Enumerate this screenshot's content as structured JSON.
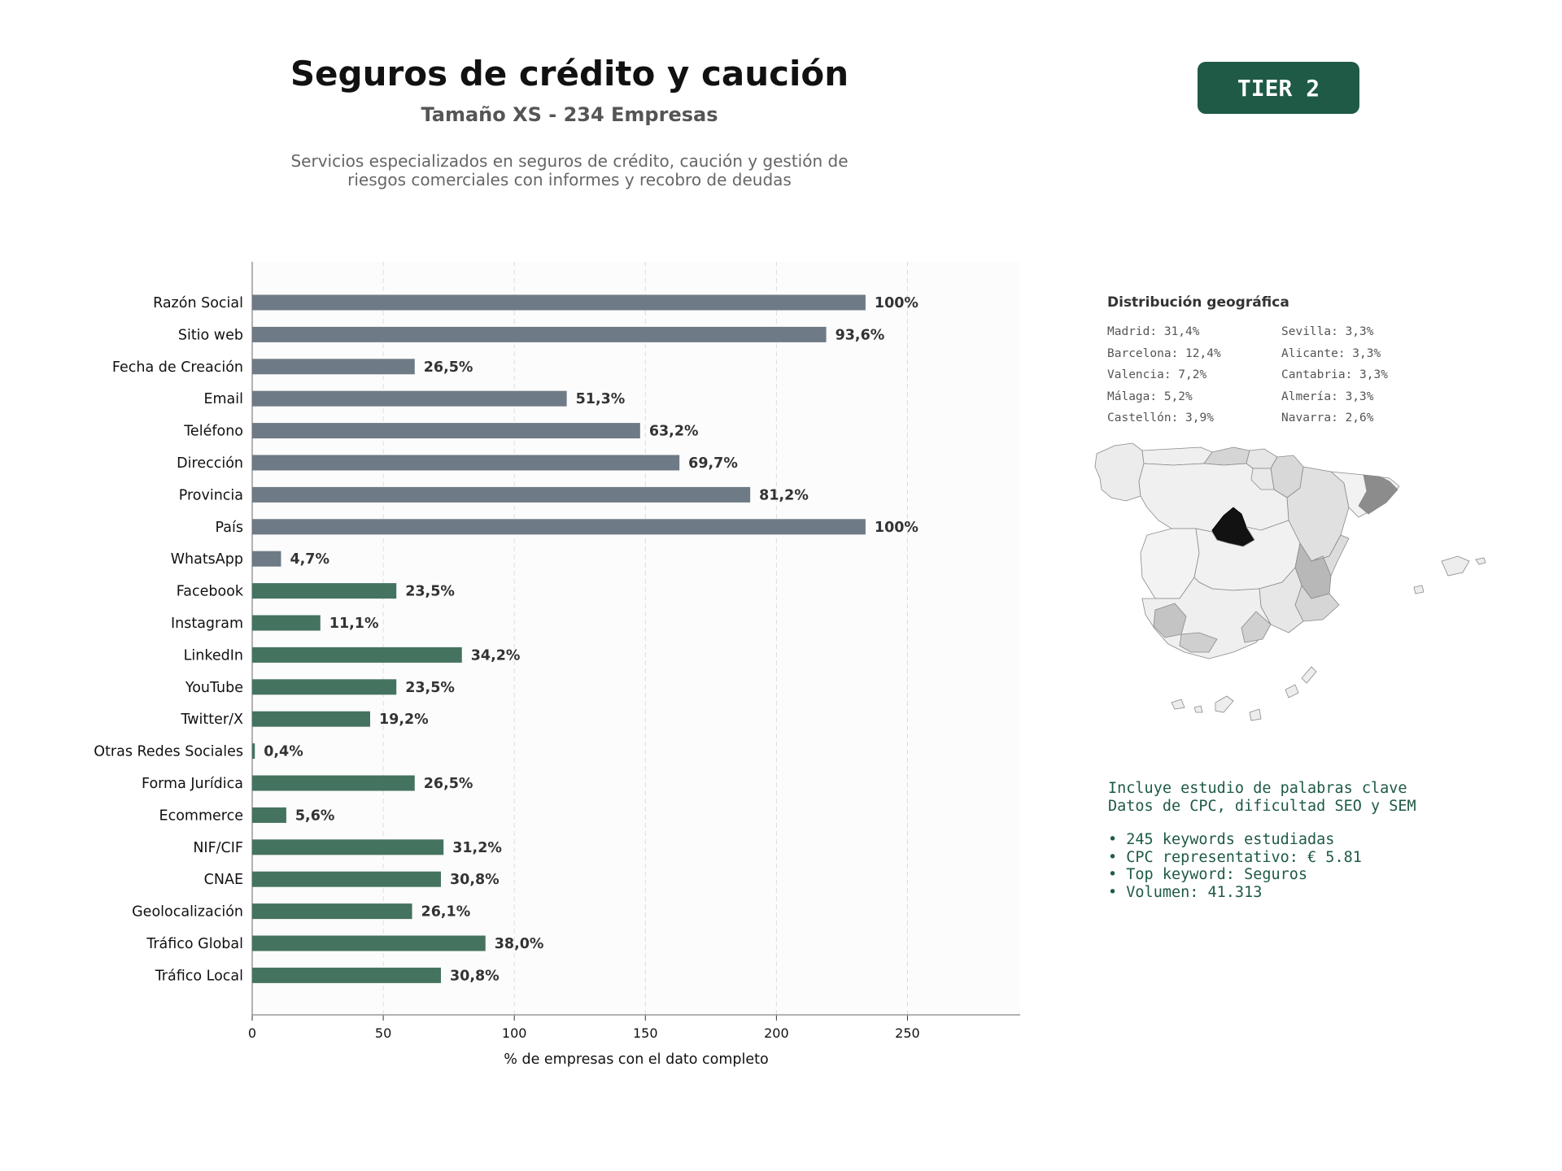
{
  "header": {
    "title": "Seguros de crédito y caución",
    "subtitle": "Tamaño XS - 234 Empresas",
    "description_line1": "Servicios especializados en seguros de crédito, caución y gestión de",
    "description_line2": "riesgos comerciales con informes y recobro de deudas",
    "badge": "TIER 2"
  },
  "chart_data": {
    "type": "bar",
    "orientation": "horizontal",
    "xlabel": "% de empresas con el dato completo",
    "xlim": [
      0,
      293
    ],
    "xticks": [
      0,
      50,
      100,
      150,
      200,
      250
    ],
    "grid": "x-dashed",
    "categories": [
      "Razón Social",
      "Sitio web",
      "Fecha de Creación",
      "Email",
      "Teléfono",
      "Dirección",
      "Provincia",
      "País",
      "WhatsApp",
      "Facebook",
      "Instagram",
      "LinkedIn",
      "YouTube",
      "Twitter/X",
      "Otras Redes Sociales",
      "Forma Jurídica",
      "Ecommerce",
      "NIF/CIF",
      "CNAE",
      "Geolocalización",
      "Tráfico Global",
      "Tráfico Local"
    ],
    "values": [
      234,
      219,
      62,
      120,
      148,
      163,
      190,
      234,
      11,
      55,
      26,
      80,
      55,
      45,
      1,
      62,
      13,
      73,
      72,
      61,
      89,
      72
    ],
    "labels": [
      "100%",
      "93,6%",
      "26,5%",
      "51,3%",
      "63,2%",
      "69,7%",
      "81,2%",
      "100%",
      "4,7%",
      "23,5%",
      "11,1%",
      "34,2%",
      "23,5%",
      "19,2%",
      "0,4%",
      "26,5%",
      "5,6%",
      "31,2%",
      "30,8%",
      "26,1%",
      "38,0%",
      "30,8%"
    ],
    "group_sizes": [
      9,
      13
    ],
    "colors": {
      "basic": "#6e7a86",
      "extended": "#44735f"
    }
  },
  "geo": {
    "title": "Distribución geográfica",
    "items": [
      "Madrid: 31,4%",
      "Sevilla: 3,3%",
      "Barcelona: 12,4%",
      "Alicante: 3,3%",
      "Valencia: 7,2%",
      "Cantabria: 3,3%",
      "Málaga: 5,2%",
      "Almería: 3,3%",
      "Castellón: 3,9%",
      "Navarra: 2,6%"
    ]
  },
  "keywords": {
    "line1": "Incluye estudio de palabras clave",
    "line2": "Datos de CPC, dificultad SEO y SEM",
    "bullets": [
      "• 245 keywords estudiadas",
      "• CPC representativo: € 5.81",
      "• Top keyword: Seguros",
      "• Volumen: 41.313"
    ]
  }
}
